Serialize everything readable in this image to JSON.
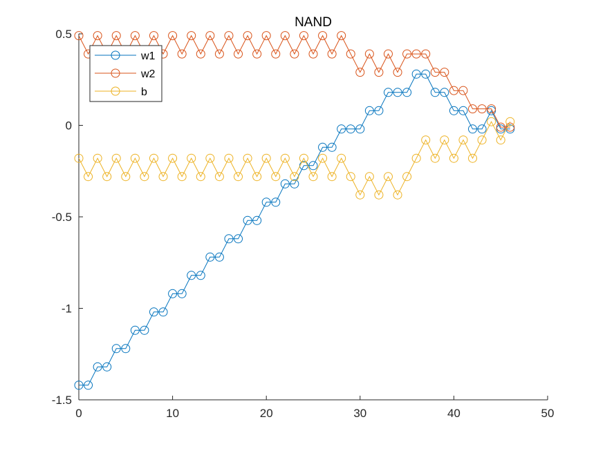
{
  "chart_data": {
    "type": "line",
    "title": "NAND",
    "xlabel": "",
    "ylabel": "",
    "xlim": [
      0,
      50
    ],
    "ylim": [
      -1.5,
      0.5
    ],
    "xticks": [
      0,
      10,
      20,
      30,
      40,
      50
    ],
    "yticks": [
      -1.5,
      -1,
      -0.5,
      0,
      0.5
    ],
    "xtick_labels": [
      "0",
      "10",
      "20",
      "30",
      "40",
      "50"
    ],
    "ytick_labels": [
      "-1.5",
      "-1",
      "-0.5",
      "0",
      "0.5"
    ],
    "grid": false,
    "legend_position": "top-left",
    "marker": "circle",
    "x": [
      0,
      1,
      2,
      3,
      4,
      5,
      6,
      7,
      8,
      9,
      10,
      11,
      12,
      13,
      14,
      15,
      16,
      17,
      18,
      19,
      20,
      21,
      22,
      23,
      24,
      25,
      26,
      27,
      28,
      29,
      30,
      31,
      32,
      33,
      34,
      35,
      36,
      37,
      38,
      39,
      40,
      41,
      42,
      43,
      44,
      45,
      46
    ],
    "series": [
      {
        "name": "w1",
        "color": "#0072BD",
        "values": [
          -1.42,
          -1.42,
          -1.32,
          -1.32,
          -1.22,
          -1.22,
          -1.12,
          -1.12,
          -1.02,
          -1.02,
          -0.92,
          -0.92,
          -0.82,
          -0.82,
          -0.72,
          -0.72,
          -0.62,
          -0.62,
          -0.52,
          -0.52,
          -0.42,
          -0.42,
          -0.32,
          -0.32,
          -0.22,
          -0.22,
          -0.12,
          -0.12,
          -0.02,
          -0.02,
          -0.02,
          0.08,
          0.08,
          0.18,
          0.18,
          0.18,
          0.28,
          0.28,
          0.18,
          0.18,
          0.08,
          0.08,
          -0.02,
          -0.02,
          0.08,
          -0.02,
          -0.02
        ]
      },
      {
        "name": "w2",
        "color": "#D95319",
        "values": [
          0.49,
          0.39,
          0.49,
          0.39,
          0.49,
          0.39,
          0.49,
          0.39,
          0.49,
          0.39,
          0.49,
          0.39,
          0.49,
          0.39,
          0.49,
          0.39,
          0.49,
          0.39,
          0.49,
          0.39,
          0.49,
          0.39,
          0.49,
          0.39,
          0.49,
          0.39,
          0.49,
          0.39,
          0.49,
          0.39,
          0.29,
          0.39,
          0.29,
          0.39,
          0.29,
          0.39,
          0.39,
          0.39,
          0.29,
          0.29,
          0.19,
          0.19,
          0.09,
          0.09,
          0.09,
          -0.01,
          -0.01
        ]
      },
      {
        "name": "b",
        "color": "#EDB120",
        "values": [
          -0.18,
          -0.28,
          -0.18,
          -0.28,
          -0.18,
          -0.28,
          -0.18,
          -0.28,
          -0.18,
          -0.28,
          -0.18,
          -0.28,
          -0.18,
          -0.28,
          -0.18,
          -0.28,
          -0.18,
          -0.28,
          -0.18,
          -0.28,
          -0.18,
          -0.28,
          -0.18,
          -0.28,
          -0.18,
          -0.28,
          -0.18,
          -0.28,
          -0.18,
          -0.28,
          -0.38,
          -0.28,
          -0.38,
          -0.28,
          -0.38,
          -0.28,
          -0.18,
          -0.08,
          -0.18,
          -0.08,
          -0.18,
          -0.08,
          -0.18,
          -0.08,
          0.02,
          -0.08,
          0.02
        ]
      }
    ]
  }
}
